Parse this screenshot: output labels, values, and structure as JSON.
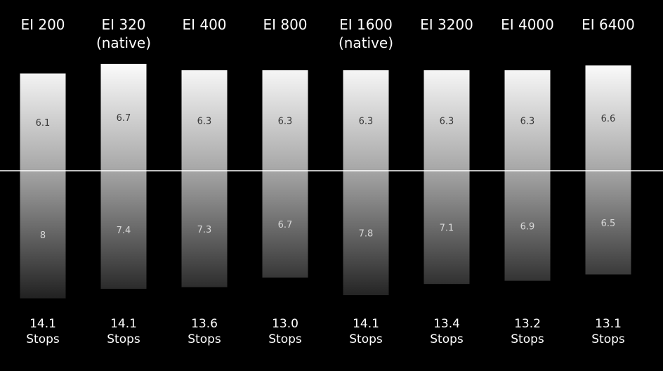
{
  "chart_data": {
    "type": "bar",
    "title": "",
    "xlabel": "",
    "ylabel": "",
    "categories": [
      {
        "label": "EI 200",
        "sublabel": ""
      },
      {
        "label": "EI 320",
        "sublabel": "(native)"
      },
      {
        "label": "EI 400",
        "sublabel": ""
      },
      {
        "label": "EI 800",
        "sublabel": ""
      },
      {
        "label": "EI 1600",
        "sublabel": "(native)"
      },
      {
        "label": "EI 3200",
        "sublabel": ""
      },
      {
        "label": "EI 4000",
        "sublabel": ""
      },
      {
        "label": "EI 6400",
        "sublabel": ""
      }
    ],
    "above_values": [
      6.1,
      6.7,
      6.3,
      6.3,
      6.3,
      6.3,
      6.3,
      6.6
    ],
    "below_values": [
      8,
      7.4,
      7.3,
      6.7,
      7.8,
      7.1,
      6.9,
      6.5
    ],
    "totals": [
      "14.1",
      "14.1",
      "13.6",
      "13.0",
      "14.1",
      "13.4",
      "13.2",
      "13.1"
    ],
    "total_unit": "Stops",
    "colors": {
      "background": "#000000",
      "bar_top": "#ffffff",
      "bar_bottom": "#1e1e1e",
      "midline": "#ffffff",
      "text": "#ffffff"
    }
  }
}
